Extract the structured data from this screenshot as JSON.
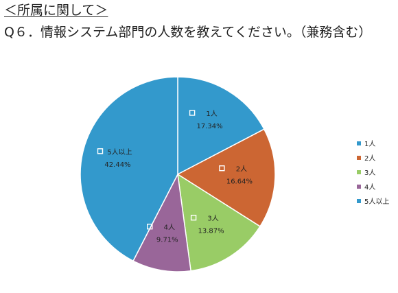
{
  "section_title": "＜所属に関して＞",
  "question": "Q６．情報システム部門の人数を教えてください。（兼務含む）",
  "chart_data": {
    "type": "pie",
    "title": "",
    "legend_position": "right",
    "categories": [
      "1人",
      "2人",
      "3人",
      "4人",
      "5人以上"
    ],
    "values": [
      17.34,
      16.64,
      13.87,
      9.71,
      42.44
    ],
    "value_labels": [
      "17.34%",
      "16.64%",
      "13.87%",
      "9.71%",
      "42.44%"
    ],
    "colors": [
      "#3399CC",
      "#CC6633",
      "#99CC66",
      "#996699",
      "#3399CC"
    ],
    "start_angle": "12 o'clock",
    "direction": "clockwise"
  }
}
